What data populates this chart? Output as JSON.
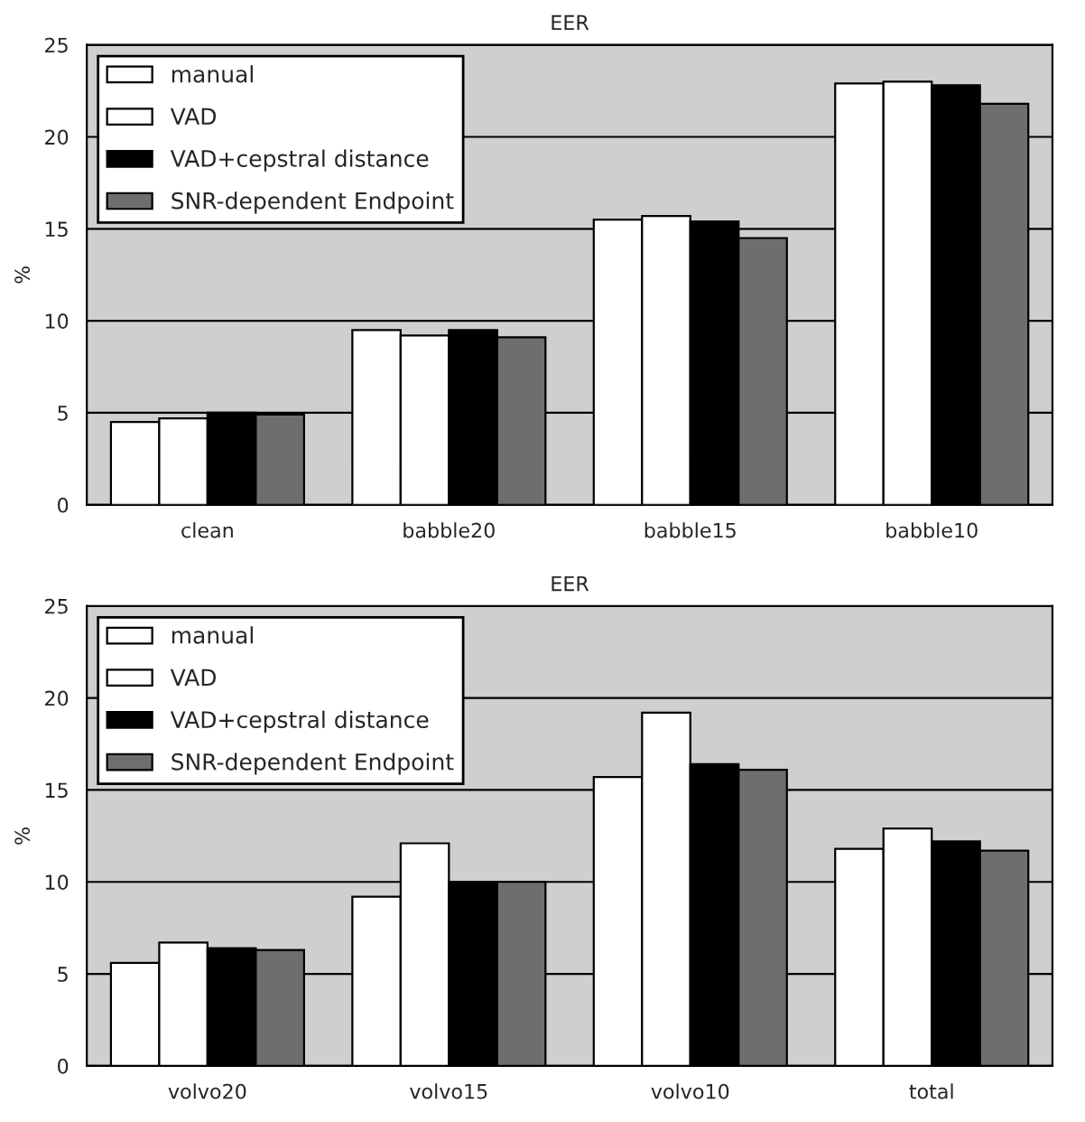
{
  "chart_data": [
    {
      "type": "bar",
      "title": "EER",
      "ylabel": "%",
      "categories": [
        "clean",
        "babble20",
        "babble15",
        "babble10"
      ],
      "ylim": [
        0,
        25
      ],
      "yticks": [
        0,
        5,
        10,
        15,
        20,
        25
      ],
      "grid": "y",
      "legend": "top left",
      "series": [
        {
          "name": "manual",
          "color": "#ffffff",
          "values": [
            4.5,
            9.5,
            15.5,
            22.9
          ]
        },
        {
          "name": "VAD",
          "color": "#ffffff",
          "values": [
            4.7,
            9.2,
            15.7,
            23.0
          ]
        },
        {
          "name": "VAD+cepstral distance",
          "color": "#000000",
          "values": [
            5.0,
            9.5,
            15.4,
            22.8
          ]
        },
        {
          "name": "SNR-dependent Endpoint",
          "color": "#6e6e6e",
          "values": [
            4.9,
            9.1,
            14.5,
            21.8
          ]
        }
      ]
    },
    {
      "type": "bar",
      "title": "EER",
      "ylabel": "%",
      "categories": [
        "volvo20",
        "volvo15",
        "volvo10",
        "total"
      ],
      "ylim": [
        0,
        25
      ],
      "yticks": [
        0,
        5,
        10,
        15,
        20,
        25
      ],
      "grid": "y",
      "legend": "top left",
      "series": [
        {
          "name": "manual",
          "color": "#ffffff",
          "values": [
            5.6,
            9.2,
            15.7,
            11.8
          ]
        },
        {
          "name": "VAD",
          "color": "#ffffff",
          "values": [
            6.7,
            12.1,
            19.2,
            12.9
          ]
        },
        {
          "name": "VAD+cepstral distance",
          "color": "#000000",
          "values": [
            6.4,
            10.0,
            16.4,
            12.2
          ]
        },
        {
          "name": "SNR-dependent Endpoint",
          "color": "#6e6e6e",
          "values": [
            6.3,
            10.0,
            16.1,
            11.7
          ]
        }
      ]
    }
  ]
}
